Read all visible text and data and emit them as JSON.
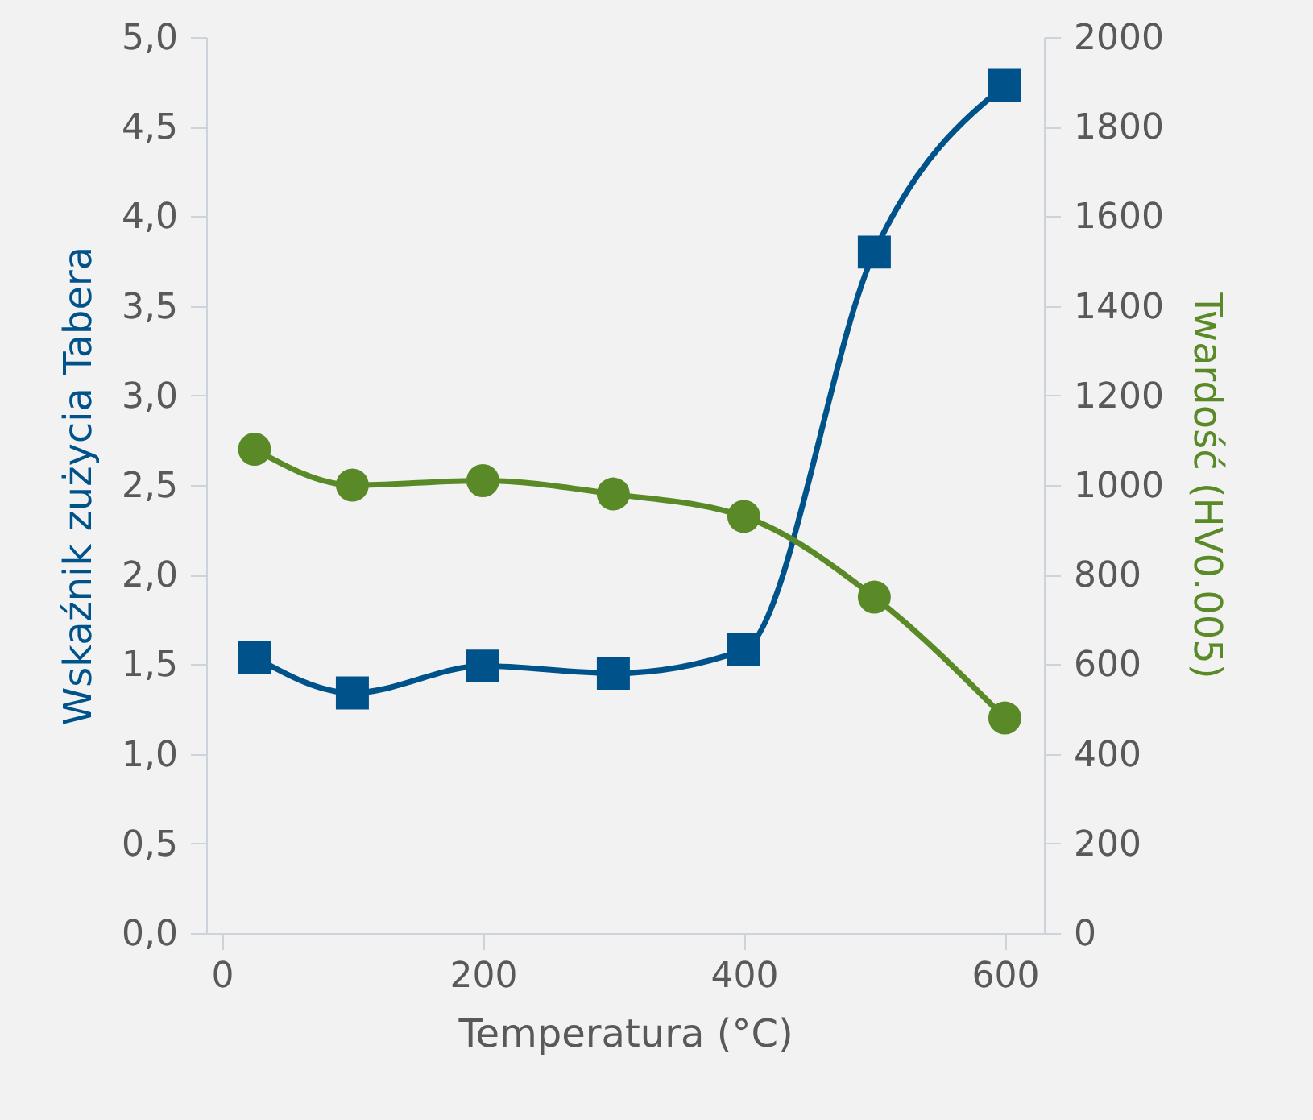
{
  "chart_data": {
    "type": "line",
    "xlabel": "Temperatura (°C)",
    "ylabel": "Wskaźnik zużycia Tabera",
    "y2label": "Twardość (HV0.005)",
    "x": [
      25,
      100,
      200,
      300,
      400,
      500,
      600
    ],
    "xlim": [
      -12,
      630
    ],
    "xticks": [
      0,
      200,
      400,
      600
    ],
    "ylim": [
      0,
      5
    ],
    "yticks": [
      {
        "value": 0,
        "label": "0,0"
      },
      {
        "value": 0.5,
        "label": "0,5"
      },
      {
        "value": 1,
        "label": "1,0"
      },
      {
        "value": 1.5,
        "label": "1,5"
      },
      {
        "value": 2,
        "label": "2,0"
      },
      {
        "value": 2.5,
        "label": "2,5"
      },
      {
        "value": 3,
        "label": "3,0"
      },
      {
        "value": 3.5,
        "label": "3,5"
      },
      {
        "value": 4,
        "label": "4,0"
      },
      {
        "value": 4.5,
        "label": "4,5"
      },
      {
        "value": 5,
        "label": "5,0"
      }
    ],
    "y2lim": [
      0,
      2000
    ],
    "y2ticks": [
      0,
      200,
      400,
      600,
      800,
      1000,
      1200,
      1400,
      1600,
      1800,
      2000
    ],
    "grid": false,
    "line_style": "solid",
    "series": [
      {
        "color": "#00538a",
        "marker": "square",
        "values": [
          1.54,
          1.34,
          1.49,
          1.45,
          1.58,
          3.8,
          4.73
        ]
      },
      {
        "color": "#5a8a28",
        "marker": "circle",
        "axis": "y2",
        "values": [
          1080,
          1000,
          1010,
          980,
          930,
          750,
          480
        ]
      }
    ]
  }
}
